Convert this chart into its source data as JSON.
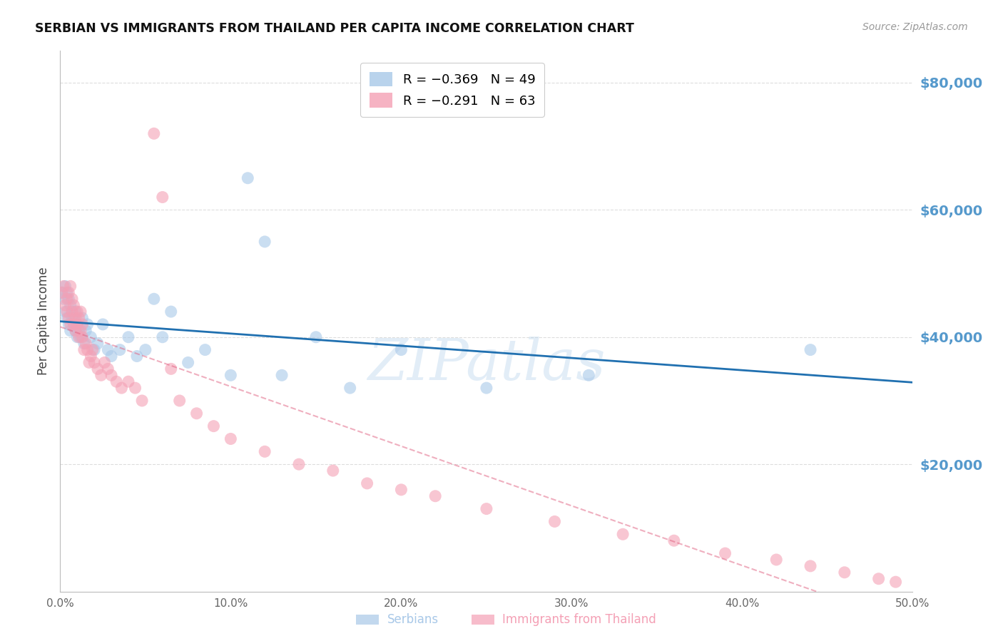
{
  "title": "SERBIAN VS IMMIGRANTS FROM THAILAND PER CAPITA INCOME CORRELATION CHART",
  "source": "Source: ZipAtlas.com",
  "ylabel": "Per Capita Income",
  "yticks": [
    20000,
    40000,
    60000,
    80000
  ],
  "ytick_labels": [
    "$20,000",
    "$40,000",
    "$60,000",
    "$80,000"
  ],
  "ylim": [
    0,
    85000
  ],
  "xlim": [
    0.0,
    0.5
  ],
  "xticks": [
    0.0,
    0.1,
    0.2,
    0.3,
    0.4,
    0.5
  ],
  "xtick_labels": [
    "0.0%",
    "10.0%",
    "20.0%",
    "30.0%",
    "40.0%",
    "50.0%"
  ],
  "watermark": "ZIPatlas",
  "blue_color": "#a8c8e8",
  "pink_color": "#f4a0b5",
  "blue_line_color": "#2070b0",
  "pink_line_color": "#e06080",
  "axis_label_color": "#5599cc",
  "grid_color": "#dddddd",
  "serbians_x": [
    0.001,
    0.002,
    0.003,
    0.003,
    0.004,
    0.004,
    0.005,
    0.005,
    0.006,
    0.006,
    0.007,
    0.007,
    0.008,
    0.008,
    0.009,
    0.009,
    0.01,
    0.01,
    0.011,
    0.012,
    0.013,
    0.014,
    0.015,
    0.016,
    0.018,
    0.02,
    0.022,
    0.025,
    0.028,
    0.03,
    0.035,
    0.04,
    0.045,
    0.05,
    0.055,
    0.06,
    0.065,
    0.075,
    0.085,
    0.1,
    0.11,
    0.12,
    0.13,
    0.15,
    0.17,
    0.2,
    0.25,
    0.31,
    0.44
  ],
  "serbians_y": [
    47000,
    46000,
    48000,
    44000,
    47000,
    43000,
    46000,
    42000,
    45000,
    41000,
    44000,
    43000,
    43000,
    42000,
    44000,
    41000,
    42000,
    40000,
    41000,
    40000,
    43000,
    39000,
    41000,
    42000,
    40000,
    38000,
    39000,
    42000,
    38000,
    37000,
    38000,
    40000,
    37000,
    38000,
    46000,
    40000,
    44000,
    36000,
    38000,
    34000,
    65000,
    55000,
    34000,
    40000,
    32000,
    38000,
    32000,
    34000,
    38000
  ],
  "thailand_x": [
    0.001,
    0.002,
    0.003,
    0.004,
    0.004,
    0.005,
    0.005,
    0.006,
    0.006,
    0.007,
    0.007,
    0.008,
    0.008,
    0.009,
    0.009,
    0.01,
    0.01,
    0.011,
    0.011,
    0.012,
    0.012,
    0.013,
    0.013,
    0.014,
    0.015,
    0.016,
    0.017,
    0.018,
    0.019,
    0.02,
    0.022,
    0.024,
    0.026,
    0.028,
    0.03,
    0.033,
    0.036,
    0.04,
    0.044,
    0.048,
    0.055,
    0.06,
    0.065,
    0.07,
    0.08,
    0.09,
    0.1,
    0.12,
    0.14,
    0.16,
    0.18,
    0.2,
    0.22,
    0.25,
    0.29,
    0.33,
    0.36,
    0.39,
    0.42,
    0.44,
    0.46,
    0.48,
    0.49
  ],
  "thailand_y": [
    47000,
    48000,
    45000,
    44000,
    46000,
    43000,
    47000,
    42000,
    48000,
    44000,
    46000,
    42000,
    45000,
    41000,
    43000,
    42000,
    44000,
    40000,
    43000,
    41000,
    44000,
    40000,
    42000,
    38000,
    39000,
    38000,
    36000,
    37000,
    38000,
    36000,
    35000,
    34000,
    36000,
    35000,
    34000,
    33000,
    32000,
    33000,
    32000,
    30000,
    72000,
    62000,
    35000,
    30000,
    28000,
    26000,
    24000,
    22000,
    20000,
    19000,
    17000,
    16000,
    15000,
    13000,
    11000,
    9000,
    8000,
    6000,
    5000,
    4000,
    3000,
    2000,
    1500
  ],
  "blue_line_x0": 0.0,
  "blue_line_x1": 0.5,
  "blue_line_y0": 43000,
  "blue_line_y1": 25000,
  "pink_line_x0": 0.0,
  "pink_line_x1": 0.5,
  "pink_line_y0": 40000,
  "pink_line_y1": 0
}
